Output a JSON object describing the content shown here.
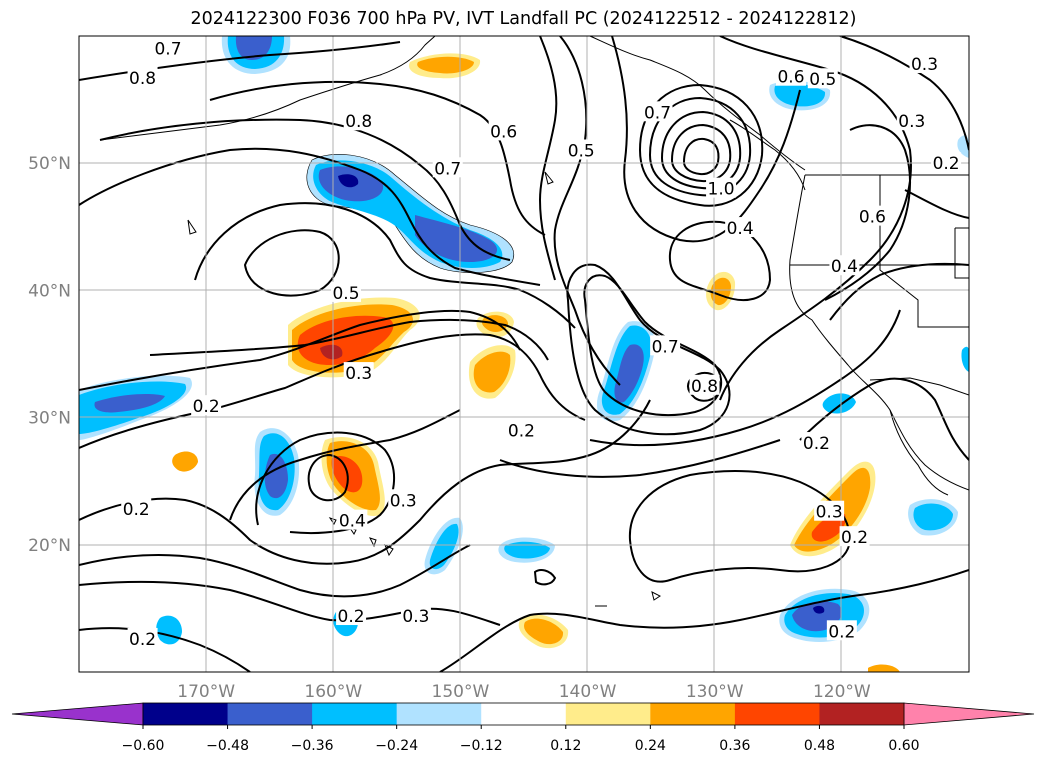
{
  "title": "2024122300 F036 700 hPa PV, IVT Landfall PC (2024122512 - 2024122812)",
  "map": {
    "lat_ticks": [
      {
        "label": "50°N",
        "lat": 50
      },
      {
        "label": "40°N",
        "lat": 40
      },
      {
        "label": "30°N",
        "lat": 30
      },
      {
        "label": "20°N",
        "lat": 20
      }
    ],
    "lon_ticks": [
      {
        "label": "170°W",
        "lon": -170
      },
      {
        "label": "160°W",
        "lon": -160
      },
      {
        "label": "150°W",
        "lon": -150
      },
      {
        "label": "140°W",
        "lon": -140
      },
      {
        "label": "130°W",
        "lon": -130
      },
      {
        "label": "120°W",
        "lon": -120
      }
    ],
    "extent": {
      "lon_min": -180,
      "lon_max": -110,
      "lat_min": 10,
      "lat_max": 60
    }
  },
  "colorbar": {
    "ticks": [
      "−0.60",
      "−0.48",
      "−0.36",
      "−0.24",
      "−0.12",
      "0.12",
      "0.24",
      "0.36",
      "0.48",
      "0.60"
    ],
    "colors": [
      "#9932cc",
      "#00008b",
      "#3a5fcd",
      "#00bfff",
      "#b0e2ff",
      "#ffffff",
      "#ffec8b",
      "#ffa500",
      "#ff4500",
      "#b22222",
      "#ff82ab"
    ]
  },
  "contour_labels": [
    {
      "text": "0.8",
      "lon": -175.0,
      "lat": 56.7
    },
    {
      "text": "0.8",
      "lon": -158.0,
      "lat": 53.3
    },
    {
      "text": "0.7",
      "lon": -151.0,
      "lat": 49.6
    },
    {
      "text": "0.7",
      "lon": -173.0,
      "lat": 59.0
    },
    {
      "text": "0.6",
      "lon": -146.6,
      "lat": 52.5
    },
    {
      "text": "0.5",
      "lon": -140.5,
      "lat": 51.0
    },
    {
      "text": "0.6",
      "lon": -124.0,
      "lat": 56.8
    },
    {
      "text": "0.5",
      "lon": -121.5,
      "lat": 56.6
    },
    {
      "text": "0.3",
      "lon": -113.5,
      "lat": 57.8
    },
    {
      "text": "0.3",
      "lon": -114.5,
      "lat": 53.3
    },
    {
      "text": "0.2",
      "lon": -111.8,
      "lat": 50.0
    },
    {
      "text": "0.7",
      "lon": -134.5,
      "lat": 54.0
    },
    {
      "text": "1.0",
      "lon": -129.5,
      "lat": 48.0
    },
    {
      "text": "0.4",
      "lon": -128.0,
      "lat": 44.9
    },
    {
      "text": "0.6",
      "lon": -117.6,
      "lat": 45.8
    },
    {
      "text": "0.4",
      "lon": -119.8,
      "lat": 41.9
    },
    {
      "text": "0.5",
      "lon": -159.0,
      "lat": 39.8
    },
    {
      "text": "0.3",
      "lon": -158.0,
      "lat": 33.5
    },
    {
      "text": "0.2",
      "lon": -170.0,
      "lat": 30.9
    },
    {
      "text": "0.7",
      "lon": -133.9,
      "lat": 35.6
    },
    {
      "text": "0.8",
      "lon": -130.8,
      "lat": 32.5
    },
    {
      "text": "0.2",
      "lon": -145.2,
      "lat": 29.0
    },
    {
      "text": "0.2",
      "lon": -122.0,
      "lat": 28.0
    },
    {
      "text": "0.2",
      "lon": -175.5,
      "lat": 22.8
    },
    {
      "text": "0.3",
      "lon": -154.5,
      "lat": 23.5
    },
    {
      "text": "0.4",
      "lon": -158.5,
      "lat": 21.9
    },
    {
      "text": "0.3",
      "lon": -121.0,
      "lat": 22.6
    },
    {
      "text": "0.2",
      "lon": -119.0,
      "lat": 20.6
    },
    {
      "text": "0.2",
      "lon": -158.6,
      "lat": 14.4
    },
    {
      "text": "0.3",
      "lon": -153.5,
      "lat": 14.4
    },
    {
      "text": "0.2",
      "lon": -175.0,
      "lat": 12.6
    },
    {
      "text": "0.2",
      "lon": -120.0,
      "lat": 13.2
    }
  ]
}
